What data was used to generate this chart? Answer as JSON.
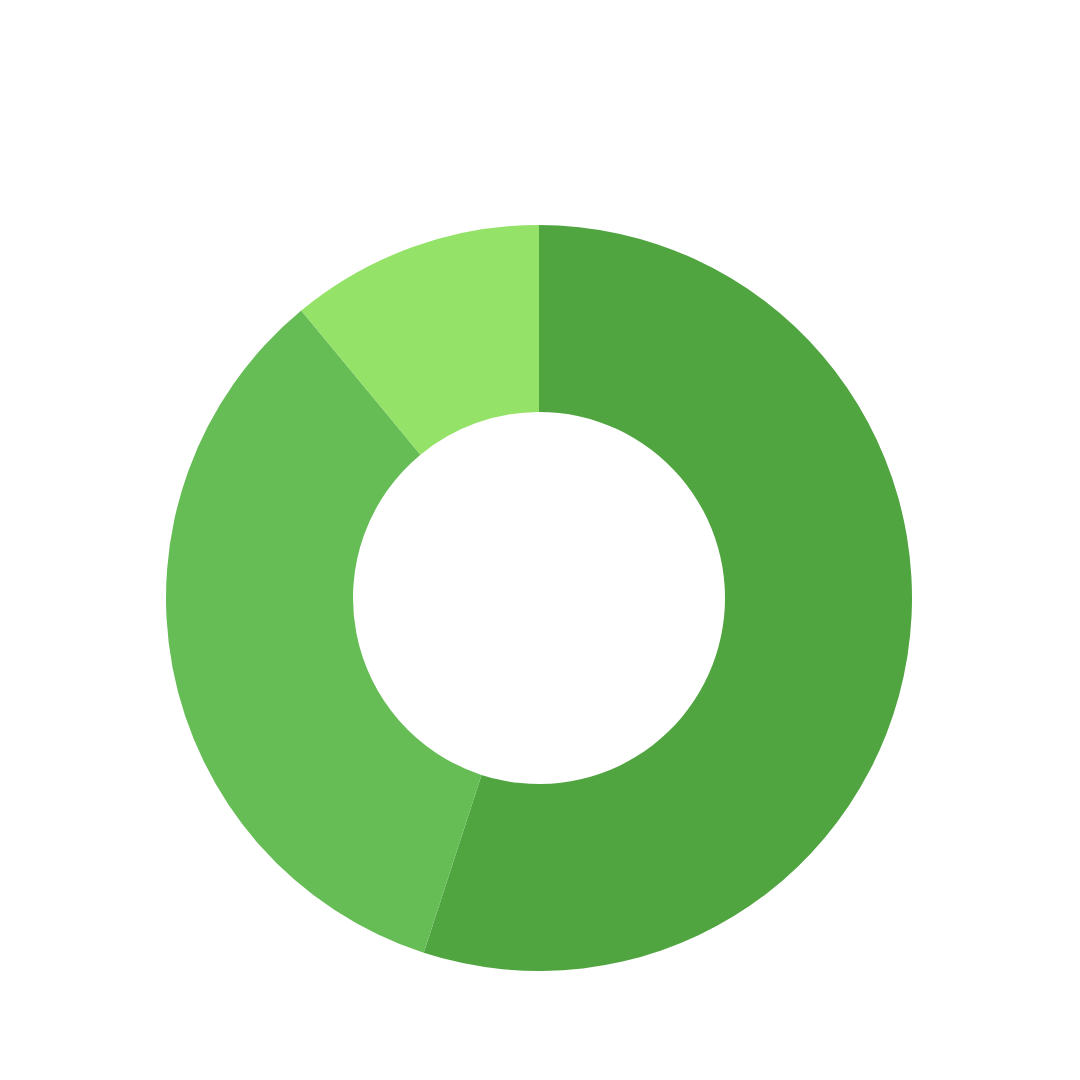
{
  "chart_data": {
    "type": "donut",
    "categories": [
      null,
      null,
      null
    ],
    "values": [
      55,
      34,
      11
    ],
    "colors": [
      "#50a541",
      "#66bd56",
      "#94e268"
    ]
  }
}
